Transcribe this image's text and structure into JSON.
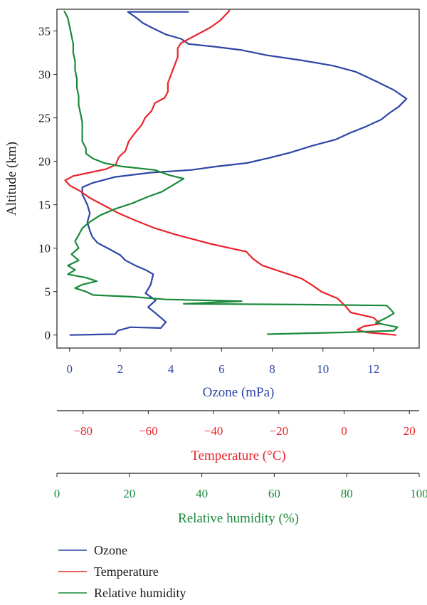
{
  "colors": {
    "ozone": "#2e46a6",
    "temperature": "#e8242a",
    "humidity": "#1a8a3a",
    "axis": "#222222"
  },
  "chart_data": {
    "type": "line",
    "orientation": "profile (x = measured quantity, y = altitude)",
    "ylabel": "Altitude (km)",
    "ylim": [
      -1.5,
      37.5
    ],
    "y_ticks": [
      0,
      5,
      10,
      15,
      20,
      25,
      30,
      35
    ],
    "grid": false,
    "legend_position": "bottom-left",
    "x_axes": [
      {
        "key": "ozone",
        "label": "Ozone (mPa)",
        "lim": [
          -0.5,
          13.8
        ],
        "ticks": [
          0,
          2,
          4,
          6,
          8,
          10,
          12
        ]
      },
      {
        "key": "temperature",
        "label": "Temperature (°C)",
        "lim": [
          -88,
          23
        ],
        "ticks": [
          -80,
          -60,
          -40,
          -20,
          0,
          20
        ]
      },
      {
        "key": "humidity",
        "label": "Relative humidity (%)",
        "lim": [
          0,
          100
        ],
        "ticks": [
          0,
          20,
          40,
          60,
          80,
          100
        ]
      }
    ],
    "series": [
      {
        "name": "Ozone",
        "axis": "ozone",
        "points": [
          [
            0,
            0
          ],
          [
            1.8,
            0.1
          ],
          [
            1.9,
            0.5
          ],
          [
            2.4,
            0.9
          ],
          [
            3.6,
            0.8
          ],
          [
            3.8,
            1.5
          ],
          [
            3.4,
            2.5
          ],
          [
            3.1,
            3.2
          ],
          [
            3.4,
            4.0
          ],
          [
            3.0,
            4.8
          ],
          [
            3.2,
            5.8
          ],
          [
            3.3,
            7.0
          ],
          [
            3.0,
            7.5
          ],
          [
            2.6,
            8.0
          ],
          [
            2.2,
            8.6
          ],
          [
            2.0,
            9.2
          ],
          [
            1.5,
            10.0
          ],
          [
            1.1,
            10.6
          ],
          [
            0.9,
            11.3
          ],
          [
            0.8,
            12.0
          ],
          [
            0.7,
            13.0
          ],
          [
            0.8,
            14.0
          ],
          [
            0.7,
            15.0
          ],
          [
            0.5,
            16.2
          ],
          [
            0.5,
            17.0
          ],
          [
            0.9,
            17.5
          ],
          [
            1.8,
            18.2
          ],
          [
            3.2,
            18.7
          ],
          [
            4.8,
            19.0
          ],
          [
            5.8,
            19.4
          ],
          [
            7.0,
            19.8
          ],
          [
            7.9,
            20.4
          ],
          [
            8.7,
            21.0
          ],
          [
            9.6,
            21.8
          ],
          [
            10.5,
            22.5
          ],
          [
            11.1,
            23.3
          ],
          [
            11.7,
            24.0
          ],
          [
            12.3,
            24.8
          ],
          [
            12.6,
            25.5
          ],
          [
            13.0,
            26.3
          ],
          [
            13.3,
            27.2
          ],
          [
            12.8,
            28.2
          ],
          [
            12.1,
            29.2
          ],
          [
            11.3,
            30.3
          ],
          [
            10.4,
            31.0
          ],
          [
            9.2,
            31.6
          ],
          [
            7.8,
            32.2
          ],
          [
            6.8,
            32.8
          ],
          [
            5.7,
            33.2
          ],
          [
            4.7,
            33.5
          ],
          [
            4.4,
            34.1
          ],
          [
            3.8,
            34.6
          ],
          [
            3.3,
            35.3
          ],
          [
            2.9,
            35.9
          ],
          [
            2.6,
            36.6
          ],
          [
            2.3,
            37.2
          ],
          [
            3.1,
            37.2
          ],
          [
            4.7,
            37.2
          ]
        ]
      },
      {
        "name": "Temperature",
        "axis": "temperature",
        "points": [
          [
            16,
            0
          ],
          [
            13,
            0.1
          ],
          [
            7,
            0.3
          ],
          [
            4,
            0.6
          ],
          [
            6,
            1.0
          ],
          [
            11,
            1.3
          ],
          [
            9,
            2.0
          ],
          [
            2,
            2.6
          ],
          [
            0.5,
            3.3
          ],
          [
            -2,
            4.2
          ],
          [
            -7,
            5.0
          ],
          [
            -10,
            5.8
          ],
          [
            -13,
            6.5
          ],
          [
            -17,
            7.0
          ],
          [
            -21,
            7.5
          ],
          [
            -25,
            8.0
          ],
          [
            -28,
            8.8
          ],
          [
            -30,
            9.6
          ],
          [
            -35,
            10.0
          ],
          [
            -41,
            10.5
          ],
          [
            -46,
            11.0
          ],
          [
            -52,
            11.6
          ],
          [
            -58,
            12.3
          ],
          [
            -64,
            13.2
          ],
          [
            -69,
            14.0
          ],
          [
            -74,
            15.0
          ],
          [
            -78,
            15.8
          ],
          [
            -81,
            16.6
          ],
          [
            -84,
            17.2
          ],
          [
            -85.5,
            17.8
          ],
          [
            -83,
            18.3
          ],
          [
            -78,
            18.7
          ],
          [
            -73,
            19.1
          ],
          [
            -70,
            19.6
          ],
          [
            -69,
            20.5
          ],
          [
            -67,
            21.2
          ],
          [
            -66,
            22.3
          ],
          [
            -64,
            23.3
          ],
          [
            -62,
            24.2
          ],
          [
            -61,
            25.0
          ],
          [
            -59,
            25.8
          ],
          [
            -58,
            26.7
          ],
          [
            -55,
            27.3
          ],
          [
            -54,
            28.0
          ],
          [
            -54,
            29.0
          ],
          [
            -53,
            30.0
          ],
          [
            -52,
            31.0
          ],
          [
            -51,
            32.0
          ],
          [
            -51,
            33.0
          ],
          [
            -50,
            33.6
          ],
          [
            -47,
            34.2
          ],
          [
            -44,
            34.8
          ],
          [
            -41,
            35.4
          ],
          [
            -38,
            36.2
          ],
          [
            -36,
            37.0
          ],
          [
            -35,
            37.4
          ]
        ]
      },
      {
        "name": "Relative humidity",
        "axis": "humidity",
        "points": [
          [
            58,
            0.1
          ],
          [
            79,
            0.3
          ],
          [
            93,
            0.5
          ],
          [
            94,
            0.9
          ],
          [
            88,
            1.4
          ],
          [
            91,
            2.0
          ],
          [
            93,
            2.5
          ],
          [
            92,
            3.0
          ],
          [
            91,
            3.4
          ],
          [
            70,
            3.5
          ],
          [
            35,
            3.6
          ],
          [
            51,
            3.9
          ],
          [
            30,
            4.1
          ],
          [
            21,
            4.4
          ],
          [
            10,
            4.6
          ],
          [
            8,
            5.0
          ],
          [
            5,
            5.4
          ],
          [
            7,
            5.8
          ],
          [
            11,
            6.2
          ],
          [
            8,
            6.6
          ],
          [
            3,
            7.0
          ],
          [
            5,
            7.5
          ],
          [
            3,
            8.0
          ],
          [
            6,
            8.6
          ],
          [
            4,
            9.3
          ],
          [
            6,
            10.0
          ],
          [
            5,
            10.8
          ],
          [
            6,
            11.5
          ],
          [
            7,
            12.3
          ],
          [
            9,
            13.0
          ],
          [
            12,
            13.8
          ],
          [
            16,
            14.5
          ],
          [
            21,
            15.2
          ],
          [
            25,
            15.9
          ],
          [
            29,
            16.5
          ],
          [
            31,
            17.0
          ],
          [
            33,
            17.5
          ],
          [
            35,
            18.0
          ],
          [
            31,
            18.4
          ],
          [
            27,
            19.0
          ],
          [
            18,
            19.4
          ],
          [
            13,
            19.8
          ],
          [
            10,
            20.3
          ],
          [
            8,
            20.9
          ],
          [
            8,
            21.5
          ],
          [
            7,
            22.3
          ],
          [
            7,
            23.3
          ],
          [
            7,
            24.5
          ],
          [
            6.5,
            25.5
          ],
          [
            6,
            26.5
          ],
          [
            6,
            27.5
          ],
          [
            5.5,
            28.5
          ],
          [
            5.5,
            29.5
          ],
          [
            5,
            30.5
          ],
          [
            5,
            31.5
          ],
          [
            4.5,
            32.5
          ],
          [
            4.5,
            33.5
          ],
          [
            4,
            34.5
          ],
          [
            3.5,
            35.5
          ],
          [
            3,
            36.5
          ],
          [
            2,
            37.3
          ]
        ]
      }
    ]
  }
}
